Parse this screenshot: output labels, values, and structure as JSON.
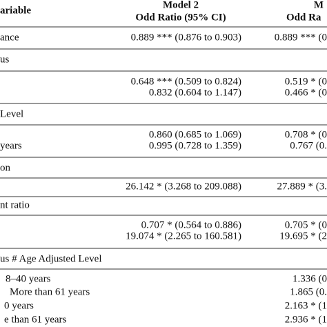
{
  "header": {
    "label": "ariable",
    "model2": [
      "Model 2",
      "Odd Ratio (95% CI)"
    ],
    "model3": [
      "M",
      "Odd Ra"
    ]
  },
  "rows": [
    {
      "label": "ance",
      "model2": "0.889 *** (0.876 to 0.903)",
      "model3": "0.889 *** (0"
    },
    {
      "label": "us"
    },
    {
      "model2": "0.648 *** (0.509 to 0.824)",
      "model3": "0.519 * (0"
    },
    {
      "model2": "0.832 (0.604 to 1.147)",
      "model3": "0.466 * (0"
    },
    {
      "label": "Level"
    },
    {
      "model2": "0.860 (0.685 to 1.069)",
      "model3": "0.708 * (0"
    },
    {
      "label": "years",
      "model2": "0.995 (0.728 to 1.359)",
      "model3": "0.767 (0."
    },
    {
      "label": "on"
    },
    {
      "model2": "26.142 * (3.268 to 209.088)",
      "model3": "27.889 * (3."
    },
    {
      "label": "nt ratio"
    },
    {
      "model2": "0.707 * (0.564 to 0.886)",
      "model3": "0.705 * (0"
    },
    {
      "model2": "19.074 * (2.265 to 160.581)",
      "model3": "19.695 * (2"
    },
    {
      "label": "us # Age Adjusted Level"
    },
    {
      "label": "8–40 years",
      "model3": "1.336 (0"
    },
    {
      "label": "More than 61 years",
      "model3": "1.865 (0."
    },
    {
      "label": "0 years",
      "model3": "2.163 * (1"
    },
    {
      "label": "e than 61 years",
      "model3": "2.936 * (1"
    }
  ]
}
